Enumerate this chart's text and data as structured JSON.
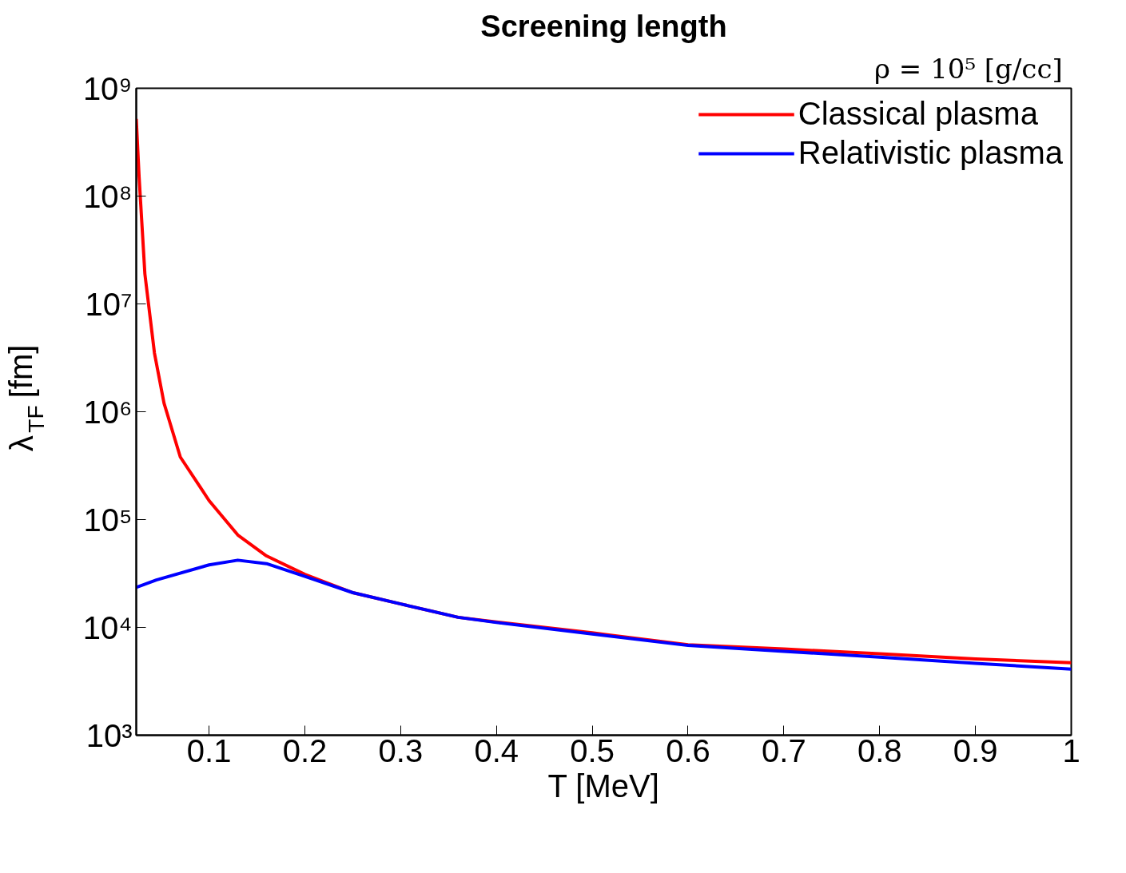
{
  "chart_data": {
    "type": "line",
    "title": "Screening length",
    "xlabel": "T [MeV]",
    "ylabel": "λ$_{TF}$ [fm]",
    "annotations": [
      "ρ = 10⁵  [g/cc]"
    ],
    "log": "y",
    "grid": false,
    "legend": "top right",
    "marker": "none",
    "line_style": "solid",
    "xlim": [
      0.024,
      1
    ],
    "xticks": [
      0.1,
      0.2,
      0.3,
      0.4,
      0.5,
      0.6,
      0.7,
      0.8,
      0.9,
      1
    ],
    "ylim": [
      1000,
      1000000000
    ],
    "yticks": [
      {
        "value": 1000,
        "label": "10³"
      },
      {
        "value": 10000,
        "label": "10⁴"
      },
      {
        "value": 100000,
        "label": "10⁵"
      },
      {
        "value": 1000000,
        "label": "10⁶"
      },
      {
        "value": 10000000,
        "label": "10⁷"
      },
      {
        "value": 100000000,
        "label": "10⁸"
      },
      {
        "value": 1000000000,
        "label": "10⁹"
      }
    ],
    "series": [
      {
        "name": "Classical plasma",
        "color": "#ff0000",
        "x": [
          0.024,
          0.027,
          0.033,
          0.043,
          0.053,
          0.07,
          0.1,
          0.13,
          0.16,
          0.2,
          0.25,
          0.3,
          0.36,
          0.4,
          0.5,
          0.6,
          0.7,
          0.8,
          0.9,
          1.0
        ],
        "values": [
          520000000,
          150000000,
          19000000,
          3500000,
          1200000,
          380000,
          150000,
          72000,
          46000,
          31000,
          21000,
          16500,
          12400,
          11200,
          8900,
          6900,
          6300,
          5700,
          5100,
          4700
        ]
      },
      {
        "name": "Relativistic plasma",
        "color": "#0000ff",
        "x": [
          0.024,
          0.045,
          0.1,
          0.13,
          0.16,
          0.2,
          0.25,
          0.3,
          0.36,
          0.4,
          0.5,
          0.6,
          0.7,
          0.8,
          0.9,
          1.0
        ],
        "values": [
          23500,
          27500,
          38000,
          42000,
          39000,
          29700,
          21000,
          16500,
          12400,
          11100,
          8700,
          6800,
          6000,
          5300,
          4650,
          4100
        ]
      }
    ]
  }
}
